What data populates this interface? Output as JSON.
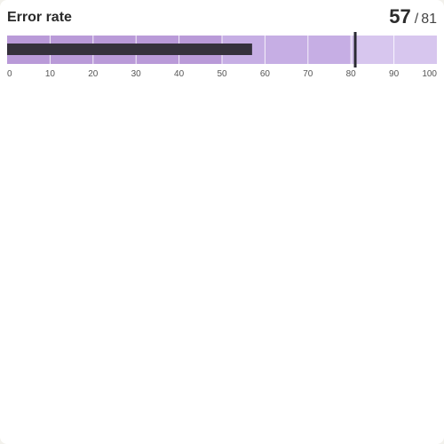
{
  "title": "Error rate",
  "readout": {
    "value": "57",
    "separator": "/",
    "target": "81"
  },
  "chart_data": {
    "type": "bullet",
    "title": "Error rate",
    "value": 57,
    "target": 81,
    "range": [
      0,
      100
    ],
    "ticks": [
      0,
      10,
      20,
      30,
      40,
      50,
      60,
      70,
      80,
      90,
      100
    ],
    "bands": [
      {
        "from": 0,
        "to": 50,
        "color": "#b99ad8"
      },
      {
        "from": 50,
        "to": 80,
        "color": "#c6aee4"
      },
      {
        "from": 80,
        "to": 100,
        "color": "#d7c6ee"
      }
    ],
    "bar_color": "#35313c",
    "target_color": "#2b2b33",
    "grid": true
  }
}
